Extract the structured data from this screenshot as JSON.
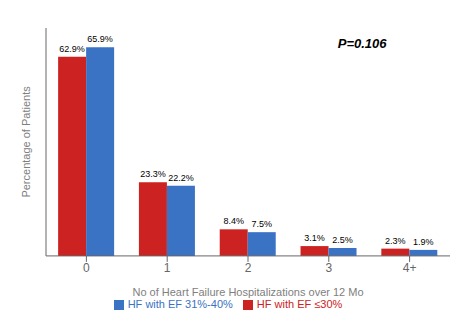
{
  "chart_data": {
    "type": "bar",
    "categories": [
      "0",
      "1",
      "2",
      "3",
      "4+"
    ],
    "series": [
      {
        "name": "HF with EF ≤30%",
        "color": "#CC2222",
        "values": [
          62.9,
          23.3,
          8.4,
          3.1,
          2.3
        ],
        "value_labels": [
          "62.9%",
          "23.3%",
          "8.4%",
          "3.1%",
          "2.3%"
        ]
      },
      {
        "name": "HF with EF 31%-40%",
        "color": "#3A72C4",
        "values": [
          65.9,
          22.2,
          7.5,
          2.5,
          1.9
        ],
        "value_labels": [
          "65.9%",
          "22.2%",
          "7.5%",
          "2.5%",
          "1.9%"
        ]
      }
    ],
    "xlabel": "No of Heart Failure Hospitalizations over 12 Mo",
    "ylabel": "Percentage of Patients",
    "ylim": [
      0,
      72
    ],
    "yticks": [],
    "grid": false,
    "tick_labels": "x",
    "data_labels": true,
    "legend": "bottom",
    "annotations": [
      "P=0.106"
    ]
  }
}
